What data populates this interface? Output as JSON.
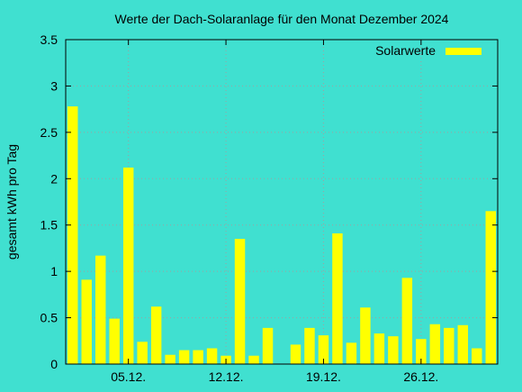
{
  "colors": {
    "background": "#40e0d0",
    "bar": "#ffff00",
    "grid": "#a0a0a0",
    "axis": "#000000"
  },
  "chart_data": {
    "type": "bar",
    "title": "Werte der Dach-Solaranlage für den Monat Dezember 2024",
    "ylabel": "gesamt kWh pro Tag",
    "xlabel": "",
    "ylim": [
      0,
      3.5
    ],
    "yticks": [
      "0",
      "0.5",
      "1",
      "1.5",
      "2",
      "2.5",
      "3",
      "3.5"
    ],
    "xticks": [
      {
        "label": "05.12.",
        "day": 5
      },
      {
        "label": "12.12.",
        "day": 12
      },
      {
        "label": "19.12.",
        "day": 19
      },
      {
        "label": "26.12.",
        "day": 26
      }
    ],
    "grid": true,
    "legend_position": "top-right",
    "categories": [
      1,
      2,
      3,
      4,
      5,
      6,
      7,
      8,
      9,
      10,
      11,
      12,
      13,
      14,
      15,
      16,
      17,
      18,
      19,
      20,
      21,
      22,
      23,
      24,
      25,
      26,
      27,
      28,
      29,
      30,
      31
    ],
    "series": [
      {
        "name": "Solarwerte",
        "values": [
          2.78,
          0.91,
          1.17,
          0.49,
          2.12,
          0.24,
          0.62,
          0.1,
          0.15,
          0.15,
          0.17,
          0.09,
          1.35,
          0.09,
          0.39,
          0.0,
          0.21,
          0.39,
          0.31,
          1.41,
          0.23,
          0.61,
          0.33,
          0.3,
          0.93,
          0.27,
          0.43,
          0.39,
          0.42,
          0.17,
          1.65
        ]
      }
    ]
  }
}
